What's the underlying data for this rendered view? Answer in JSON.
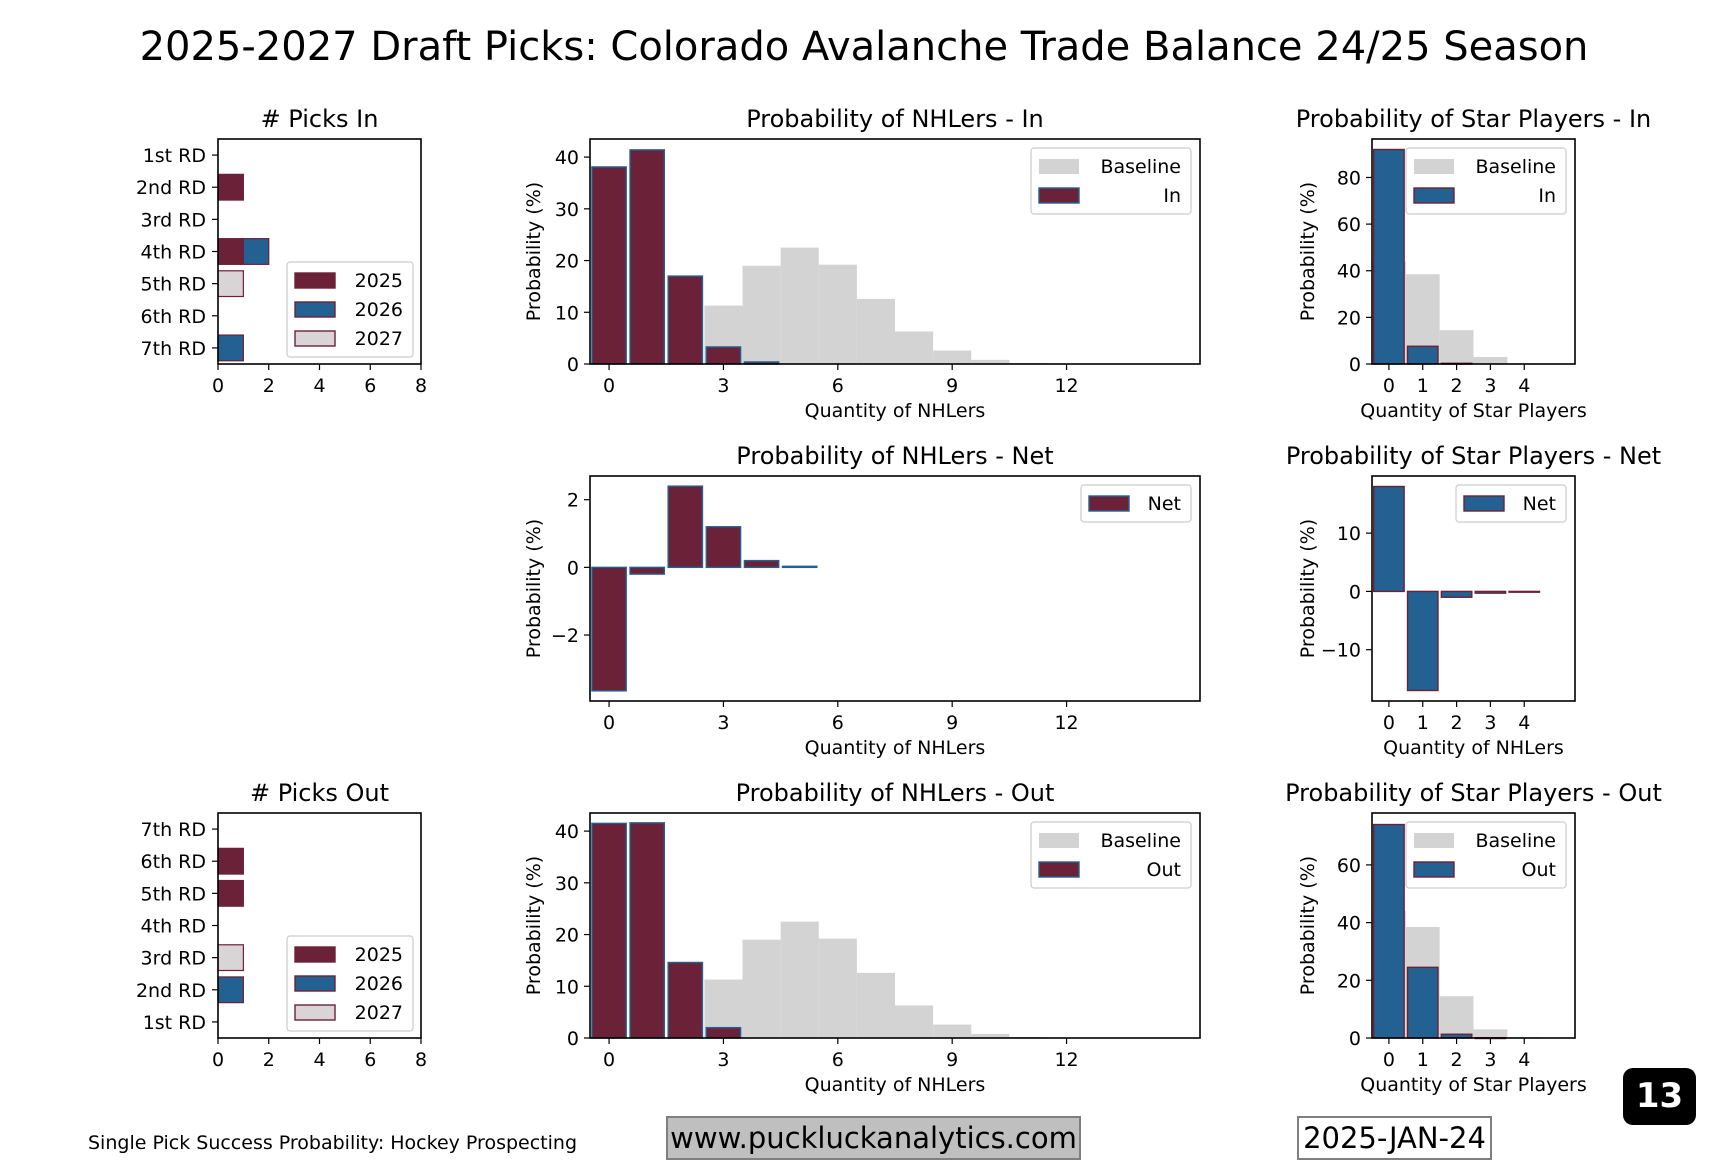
{
  "title": "2025-2027 Draft Picks: Colorado Avalanche Trade Balance 24/25 Season",
  "footer": {
    "source": "Single Pick Success Probability: Hockey Prospecting",
    "url": "www.puckluckanalytics.com",
    "date": "2025-JAN-24",
    "page_number": "13"
  },
  "colors": {
    "2025": "#6b2238",
    "2026": "#236192",
    "2027": "#d9d4d6",
    "baseline": "#d3d3d3",
    "maroon": "#6b2238",
    "blue": "#236192"
  },
  "chart_data": [
    {
      "id": "picks-in",
      "type": "bar",
      "orientation": "horizontal",
      "stacked": true,
      "title": "# Picks In",
      "categories": [
        "1st RD",
        "2nd RD",
        "3rd RD",
        "4th RD",
        "5th RD",
        "6th RD",
        "7th RD"
      ],
      "series": [
        {
          "name": "2025",
          "values": [
            0,
            1,
            0,
            1,
            0,
            0,
            0
          ]
        },
        {
          "name": "2026",
          "values": [
            0,
            0,
            0,
            1,
            0,
            0,
            1
          ]
        },
        {
          "name": "2027",
          "values": [
            0,
            0,
            0,
            0,
            1,
            0,
            0
          ]
        }
      ],
      "xlim": [
        0,
        8
      ],
      "xticks": [
        "0",
        "2",
        "4",
        "6",
        "8"
      ],
      "legend": "lower-right"
    },
    {
      "id": "picks-out",
      "type": "bar",
      "orientation": "horizontal",
      "stacked": true,
      "title": "# Picks Out",
      "categories": [
        "7th RD",
        "6th RD",
        "5th RD",
        "4th RD",
        "3rd RD",
        "2nd RD",
        "1st RD"
      ],
      "series": [
        {
          "name": "2025",
          "values": [
            0,
            1,
            1,
            0,
            0,
            0,
            0
          ]
        },
        {
          "name": "2026",
          "values": [
            0,
            0,
            0,
            0,
            0,
            1,
            0
          ]
        },
        {
          "name": "2027",
          "values": [
            0,
            0,
            0,
            0,
            1,
            0,
            0
          ]
        }
      ],
      "xlim": [
        0,
        8
      ],
      "xticks": [
        "0",
        "2",
        "4",
        "6",
        "8"
      ],
      "legend": "lower-right"
    },
    {
      "id": "nhl-in",
      "type": "bar",
      "title": "Probability of NHLers - In",
      "xlabel": "Quantity of NHLers",
      "ylabel": "Probability (%)",
      "x": [
        0,
        1,
        2,
        3,
        4,
        5,
        6,
        7,
        8,
        9,
        10,
        11,
        12,
        13,
        14,
        15
      ],
      "series": [
        {
          "name": "Baseline",
          "values": [
            0,
            0,
            0,
            11.3,
            19,
            22.5,
            19.2,
            12.6,
            6.3,
            2.6,
            0.8,
            0.2,
            0.05,
            0,
            0,
            0
          ]
        },
        {
          "name": "In",
          "values": [
            38.1,
            41.4,
            17,
            3.3,
            0.4,
            0,
            0,
            0,
            0,
            0,
            0,
            0,
            0,
            0,
            0,
            0
          ]
        }
      ],
      "xlim": [
        -0.5,
        15.5
      ],
      "ylim": [
        0,
        43.5
      ],
      "xticks": [
        "0",
        "3",
        "6",
        "9",
        "12"
      ],
      "yticks": [
        "0",
        "10",
        "20",
        "30",
        "40"
      ],
      "legend": "upper-right"
    },
    {
      "id": "nhl-net",
      "type": "bar",
      "title": "Probability of NHLers - Net",
      "xlabel": "Quantity of NHLers",
      "ylabel": "Probability (%)",
      "x": [
        0,
        1,
        2,
        3,
        4,
        5,
        6,
        7,
        8,
        9,
        10,
        11,
        12,
        13,
        14,
        15
      ],
      "series": [
        {
          "name": "Net",
          "values": [
            -3.65,
            -0.2,
            2.4,
            1.2,
            0.2,
            0.03,
            0,
            0,
            0,
            0,
            0,
            0,
            0,
            0,
            0,
            0
          ]
        }
      ],
      "xlim": [
        -0.5,
        15.5
      ],
      "ylim": [
        -3.95,
        2.7
      ],
      "xticks": [
        "0",
        "3",
        "6",
        "9",
        "12"
      ],
      "yticks": [
        "−2",
        "0",
        "2"
      ],
      "legend": "upper-right"
    },
    {
      "id": "nhl-out",
      "type": "bar",
      "title": "Probability of NHLers - Out",
      "xlabel": "Quantity of NHLers",
      "ylabel": "Probability (%)",
      "x": [
        0,
        1,
        2,
        3,
        4,
        5,
        6,
        7,
        8,
        9,
        10,
        11,
        12,
        13,
        14,
        15
      ],
      "series": [
        {
          "name": "Baseline",
          "values": [
            0,
            0,
            0,
            11.3,
            19,
            22.5,
            19.2,
            12.6,
            6.3,
            2.6,
            0.8,
            0.2,
            0.05,
            0,
            0,
            0
          ]
        },
        {
          "name": "Out",
          "values": [
            41.5,
            41.6,
            14.6,
            2,
            0,
            0,
            0,
            0,
            0,
            0,
            0,
            0,
            0,
            0,
            0,
            0
          ]
        }
      ],
      "xlim": [
        -0.5,
        15.5
      ],
      "ylim": [
        0,
        43.5
      ],
      "xticks": [
        "0",
        "3",
        "6",
        "9",
        "12"
      ],
      "yticks": [
        "0",
        "10",
        "20",
        "30",
        "40"
      ],
      "legend": "upper-right"
    },
    {
      "id": "star-in",
      "type": "bar",
      "title": "Probability of Star Players - In",
      "xlabel": "Quantity of Star Players",
      "ylabel": "Probability (%)",
      "x": [
        0,
        1,
        2,
        3,
        4,
        5
      ],
      "series": [
        {
          "name": "Baseline",
          "values": [
            44,
            38.5,
            14.5,
            3,
            0.3,
            0
          ]
        },
        {
          "name": "In",
          "values": [
            92,
            7.6,
            0.3,
            0,
            0,
            0
          ]
        }
      ],
      "xlim": [
        -0.5,
        5.5
      ],
      "ylim": [
        0,
        96.5
      ],
      "xticks": [
        "0",
        "1",
        "2",
        "3",
        "4"
      ],
      "yticks": [
        "0",
        "20",
        "40",
        "60",
        "80"
      ],
      "legend": "upper-right"
    },
    {
      "id": "star-net",
      "type": "bar",
      "title": "Probability of Star Players - Net",
      "xlabel": "Quantity of NHLers",
      "ylabel": "Probability (%)",
      "x": [
        0,
        1,
        2,
        3,
        4,
        5
      ],
      "series": [
        {
          "name": "Net",
          "values": [
            18,
            -17,
            -1,
            -0.3,
            -0.05,
            0
          ]
        }
      ],
      "xlim": [
        -0.5,
        5.5
      ],
      "ylim": [
        -18.8,
        19.8
      ],
      "xticks": [
        "0",
        "1",
        "2",
        "3",
        "4"
      ],
      "yticks": [
        "−10",
        "0",
        "10"
      ],
      "legend": "upper-right"
    },
    {
      "id": "star-out",
      "type": "bar",
      "title": "Probability of Star Players - Out",
      "xlabel": "Quantity of Star Players",
      "ylabel": "Probability (%)",
      "x": [
        0,
        1,
        2,
        3,
        4,
        5
      ],
      "series": [
        {
          "name": "Baseline",
          "values": [
            44,
            38.5,
            14.5,
            3,
            0.3,
            0
          ]
        },
        {
          "name": "Out",
          "values": [
            74,
            24.5,
            1.3,
            0.1,
            0,
            0
          ]
        }
      ],
      "xlim": [
        -0.5,
        5.5
      ],
      "ylim": [
        0,
        78
      ],
      "xticks": [
        "0",
        "1",
        "2",
        "3",
        "4"
      ],
      "yticks": [
        "0",
        "20",
        "40",
        "60"
      ],
      "legend": "upper-right"
    }
  ]
}
